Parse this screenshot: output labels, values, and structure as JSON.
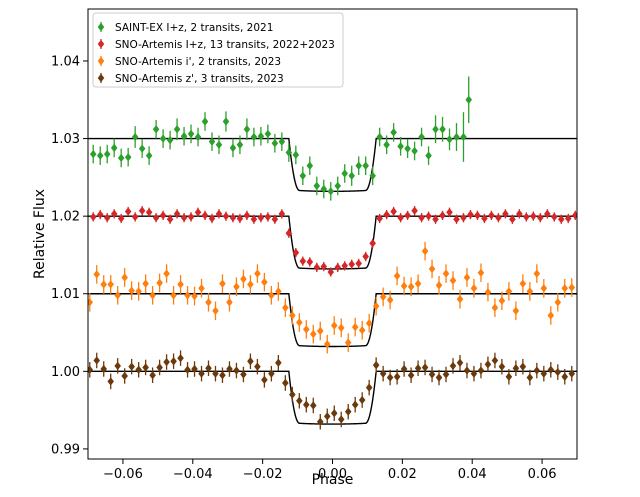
{
  "chart_data": {
    "type": "scatter",
    "title": "",
    "xlabel": "Phase",
    "ylabel": "Relative Flux",
    "xlim": [
      -0.07,
      0.07
    ],
    "ylim": [
      0.9887,
      1.0467
    ],
    "xticks": [
      -0.06,
      -0.04,
      -0.02,
      0.0,
      0.02,
      0.04,
      0.06
    ],
    "xtick_labels": [
      "−0.06",
      "−0.04",
      "−0.02",
      "0.00",
      "0.02",
      "0.04",
      "0.06"
    ],
    "yticks": [
      0.99,
      1.0,
      1.01,
      1.02,
      1.03,
      1.04
    ],
    "ytick_labels": [
      "0.99",
      "1.00",
      "1.01",
      "1.02",
      "1.03",
      "1.04"
    ],
    "legend_position": "top-left",
    "transit_model": {
      "half_width": 0.0125,
      "ingress": 0.003,
      "shape": "limb-darkened box"
    },
    "series": [
      {
        "name": "SAINT-EX I+z, 2 transits, 2021",
        "color": "#2ca02c",
        "baseline": 1.03,
        "depth": 0.0068,
        "x": [
          -0.0685,
          -0.0665,
          -0.0645,
          -0.0625,
          -0.0605,
          -0.0585,
          -0.0565,
          -0.0545,
          -0.0525,
          -0.0505,
          -0.0485,
          -0.0465,
          -0.0445,
          -0.0425,
          -0.0405,
          -0.0385,
          -0.0365,
          -0.0345,
          -0.0325,
          -0.0305,
          -0.0285,
          -0.0265,
          -0.0245,
          -0.0225,
          -0.0205,
          -0.0185,
          -0.0165,
          -0.0145,
          -0.0125,
          -0.0105,
          -0.0085,
          -0.0065,
          -0.0045,
          -0.0025,
          -0.0005,
          0.0015,
          0.0035,
          0.0055,
          0.0075,
          0.0095,
          0.0115,
          0.0135,
          0.0155,
          0.0175,
          0.0195,
          0.0215,
          0.0235,
          0.0255,
          0.0275,
          0.0295,
          0.0315,
          0.0335,
          0.0355,
          0.0375,
          0.039
        ],
        "y": [
          1.028,
          1.0278,
          1.028,
          1.0288,
          1.0275,
          1.0276,
          1.0302,
          1.0287,
          1.0278,
          1.0312,
          1.03,
          1.0298,
          1.0312,
          1.0303,
          1.0306,
          1.0302,
          1.0322,
          1.0296,
          1.0292,
          1.0322,
          1.0288,
          1.0292,
          1.0312,
          1.0302,
          1.0303,
          1.0306,
          1.0294,
          1.0296,
          1.0282,
          1.0279,
          1.0252,
          1.0265,
          1.0239,
          1.0235,
          1.0232,
          1.0239,
          1.0255,
          1.0252,
          1.0265,
          1.0265,
          1.0252,
          1.0302,
          1.0292,
          1.0308,
          1.029,
          1.0287,
          1.0284,
          1.0302,
          1.0278,
          1.0312,
          1.0312,
          1.0299,
          1.0302,
          1.0302,
          1.035
        ],
        "err": [
          0.0012,
          0.0012,
          0.0012,
          0.0012,
          0.0012,
          0.0012,
          0.0014,
          0.0012,
          0.0012,
          0.0012,
          0.0012,
          0.0012,
          0.0014,
          0.0012,
          0.0012,
          0.0012,
          0.0012,
          0.0012,
          0.0012,
          0.0013,
          0.0012,
          0.0012,
          0.0014,
          0.0012,
          0.0012,
          0.0012,
          0.0012,
          0.0012,
          0.0012,
          0.0012,
          0.0012,
          0.0012,
          0.0012,
          0.0012,
          0.0012,
          0.0012,
          0.0012,
          0.0013,
          0.0012,
          0.0012,
          0.0012,
          0.0012,
          0.0012,
          0.0012,
          0.0012,
          0.0012,
          0.0012,
          0.0012,
          0.0012,
          0.0018,
          0.0016,
          0.0014,
          0.0018,
          0.0032,
          0.003
        ]
      },
      {
        "name": "SNO-Artemis I+z, 13 transits, 2022+2023",
        "color": "#d62728",
        "baseline": 1.02,
        "depth": 0.0068,
        "x": [
          -0.0685,
          -0.0665,
          -0.0645,
          -0.0625,
          -0.0605,
          -0.0585,
          -0.0565,
          -0.0545,
          -0.0525,
          -0.0505,
          -0.0485,
          -0.0465,
          -0.0445,
          -0.0425,
          -0.0405,
          -0.0385,
          -0.0365,
          -0.0345,
          -0.0325,
          -0.0305,
          -0.0285,
          -0.0265,
          -0.0245,
          -0.0225,
          -0.0205,
          -0.0185,
          -0.0165,
          -0.0145,
          -0.0125,
          -0.0105,
          -0.0085,
          -0.0065,
          -0.0045,
          -0.0025,
          -0.0005,
          0.0015,
          0.0035,
          0.0055,
          0.0075,
          0.0095,
          0.0115,
          0.0135,
          0.0155,
          0.0175,
          0.0195,
          0.0215,
          0.0235,
          0.0255,
          0.0275,
          0.0295,
          0.0315,
          0.0335,
          0.0355,
          0.0375,
          0.0395,
          0.0415,
          0.0435,
          0.0455,
          0.0475,
          0.0495,
          0.0515,
          0.0535,
          0.0555,
          0.0575,
          0.0595,
          0.0615,
          0.0635,
          0.0655,
          0.0675,
          0.0695
        ],
        "y": [
          1.0199,
          1.0202,
          1.0198,
          1.0203,
          1.0197,
          1.0206,
          1.0199,
          1.0207,
          1.0205,
          1.0198,
          1.0201,
          1.0196,
          1.0203,
          1.0198,
          1.0199,
          1.0205,
          1.0201,
          1.0197,
          1.0203,
          1.02,
          1.0198,
          1.0197,
          1.0201,
          1.0196,
          1.0198,
          1.0199,
          1.0196,
          1.0203,
          1.0178,
          1.0153,
          1.0142,
          1.0141,
          1.0134,
          1.0135,
          1.0128,
          1.0134,
          1.0136,
          1.0138,
          1.0139,
          1.0148,
          1.0165,
          1.0197,
          1.0202,
          1.0206,
          1.0198,
          1.0201,
          1.0207,
          1.0198,
          1.02,
          1.0196,
          1.0201,
          1.0205,
          1.0196,
          1.0198,
          1.0202,
          1.0201,
          1.0197,
          1.0201,
          1.0198,
          1.0203,
          1.0196,
          1.0203,
          1.0199,
          1.02,
          1.0198,
          1.0203,
          1.0199,
          1.0196,
          1.0197,
          1.0201
        ],
        "err": [
          0.0006,
          0.0006,
          0.0006,
          0.0006,
          0.0006,
          0.0006,
          0.0006,
          0.0006,
          0.0006,
          0.0006,
          0.0006,
          0.0006,
          0.0006,
          0.0006,
          0.0006,
          0.0006,
          0.0006,
          0.0006,
          0.0006,
          0.0006,
          0.0006,
          0.0006,
          0.0006,
          0.0006,
          0.0006,
          0.0006,
          0.0006,
          0.0006,
          0.0006,
          0.0006,
          0.0006,
          0.0006,
          0.0006,
          0.0006,
          0.0006,
          0.0006,
          0.0006,
          0.0006,
          0.0006,
          0.0006,
          0.0006,
          0.0006,
          0.0006,
          0.0006,
          0.0006,
          0.0006,
          0.0006,
          0.0006,
          0.0006,
          0.0006,
          0.0006,
          0.0006,
          0.0006,
          0.0006,
          0.0006,
          0.0006,
          0.0006,
          0.0006,
          0.0006,
          0.0006,
          0.0006,
          0.0006,
          0.0006,
          0.0006,
          0.0006,
          0.0006,
          0.0006,
          0.0006,
          0.0006,
          0.0006
        ]
      },
      {
        "name": "SNO-Artemis i', 2 transits, 2023",
        "color": "#ff7f0e",
        "baseline": 1.01,
        "depth": 0.0068,
        "x": [
          -0.0695,
          -0.0675,
          -0.0655,
          -0.0635,
          -0.0615,
          -0.0595,
          -0.0575,
          -0.0555,
          -0.0535,
          -0.0515,
          -0.0495,
          -0.0475,
          -0.0455,
          -0.0435,
          -0.0415,
          -0.0395,
          -0.0375,
          -0.0355,
          -0.0335,
          -0.0315,
          -0.0295,
          -0.0275,
          -0.0255,
          -0.0235,
          -0.0215,
          -0.0195,
          -0.0175,
          -0.0155,
          -0.0135,
          -0.0115,
          -0.0095,
          -0.0075,
          -0.0055,
          -0.0035,
          -0.0015,
          0.0005,
          0.0025,
          0.0045,
          0.0065,
          0.0085,
          0.0105,
          0.0125,
          0.0145,
          0.0165,
          0.0185,
          0.0205,
          0.0225,
          0.0245,
          0.0265,
          0.0285,
          0.0305,
          0.0325,
          0.0345,
          0.0365,
          0.0385,
          0.0405,
          0.0425,
          0.0445,
          0.0465,
          0.0485,
          0.0505,
          0.0525,
          0.0545,
          0.0565,
          0.0585,
          0.0605,
          0.0625,
          0.0645,
          0.0665,
          0.0685
        ],
        "y": [
          1.0089,
          1.0125,
          1.0112,
          1.0112,
          1.0098,
          1.0121,
          1.0104,
          1.0103,
          1.0113,
          1.0098,
          1.0114,
          1.0126,
          1.0098,
          1.0112,
          1.0098,
          1.0097,
          1.0107,
          1.0089,
          1.0078,
          1.0113,
          1.0089,
          1.0109,
          1.0119,
          1.0112,
          1.0126,
          1.0115,
          1.0098,
          1.0103,
          1.0082,
          1.0072,
          1.0063,
          1.0054,
          1.0048,
          1.0052,
          1.0035,
          1.0059,
          1.0056,
          1.0037,
          1.0057,
          1.0053,
          1.0062,
          1.0084,
          1.0096,
          1.0092,
          1.0123,
          1.011,
          1.0109,
          1.0113,
          1.0155,
          1.0132,
          1.0111,
          1.0126,
          1.0117,
          1.0093,
          1.0121,
          1.0107,
          1.0127,
          1.0102,
          1.0082,
          1.0091,
          1.0103,
          1.0078,
          1.0113,
          1.0103,
          1.0126,
          1.0107,
          1.0072,
          1.0089,
          1.0107,
          1.0108
        ],
        "err": [
          0.0012,
          0.0012,
          0.0012,
          0.0012,
          0.0012,
          0.0012,
          0.0012,
          0.0012,
          0.0012,
          0.0012,
          0.0012,
          0.0012,
          0.0012,
          0.0012,
          0.0012,
          0.0012,
          0.0012,
          0.0012,
          0.0012,
          0.0012,
          0.0012,
          0.0012,
          0.0012,
          0.0012,
          0.0012,
          0.0012,
          0.0012,
          0.0012,
          0.0012,
          0.0012,
          0.0012,
          0.0012,
          0.0012,
          0.0012,
          0.0012,
          0.0012,
          0.0012,
          0.0012,
          0.0012,
          0.0012,
          0.0012,
          0.0012,
          0.0012,
          0.0012,
          0.0012,
          0.0012,
          0.0012,
          0.0012,
          0.0012,
          0.0012,
          0.0012,
          0.0012,
          0.0012,
          0.0012,
          0.0012,
          0.0012,
          0.0012,
          0.0012,
          0.0012,
          0.0012,
          0.0012,
          0.0012,
          0.0012,
          0.0012,
          0.0012,
          0.0012,
          0.0012,
          0.0012,
          0.0012,
          0.0012
        ]
      },
      {
        "name": "SNO-Artemis z', 3 transits, 2023",
        "color": "#6b3a0c",
        "baseline": 1.0,
        "depth": 0.0068,
        "x": [
          -0.0695,
          -0.0675,
          -0.0655,
          -0.0635,
          -0.0615,
          -0.0595,
          -0.0575,
          -0.0555,
          -0.0535,
          -0.0515,
          -0.0495,
          -0.0475,
          -0.0455,
          -0.0435,
          -0.0415,
          -0.0395,
          -0.0375,
          -0.0355,
          -0.0335,
          -0.0315,
          -0.0295,
          -0.0275,
          -0.0255,
          -0.0235,
          -0.0215,
          -0.0195,
          -0.0175,
          -0.0155,
          -0.0135,
          -0.0115,
          -0.0095,
          -0.0075,
          -0.0055,
          -0.0035,
          -0.0015,
          0.0005,
          0.0025,
          0.0045,
          0.0065,
          0.0085,
          0.0105,
          0.0125,
          0.0145,
          0.0165,
          0.0185,
          0.0205,
          0.0225,
          0.0245,
          0.0265,
          0.0285,
          0.0305,
          0.0325,
          0.0345,
          0.0365,
          0.0385,
          0.0405,
          0.0425,
          0.0445,
          0.0465,
          0.0485,
          0.0505,
          0.0525,
          0.0545,
          0.0565,
          0.0585,
          0.0605,
          0.0625,
          0.0645,
          0.0665,
          0.0685
        ],
        "y": [
          1.0002,
          1.0014,
          1.0003,
          0.9987,
          1.0007,
          0.9994,
          1.0006,
          1.0002,
          1.0005,
          0.9995,
          1.0005,
          1.0012,
          1.0013,
          1.0017,
          1.0002,
          1.0003,
          0.9997,
          1.0004,
          0.9997,
          0.9995,
          1.0003,
          1.0001,
          0.9996,
          1.0013,
          1.0006,
          0.9989,
          0.9997,
          1.0011,
          0.9985,
          0.997,
          0.9962,
          0.9957,
          0.9956,
          0.9935,
          0.9942,
          0.9946,
          0.9938,
          0.9948,
          0.9957,
          0.9963,
          0.9979,
          1.0008,
          0.9997,
          0.9992,
          0.9993,
          1.0003,
          0.9995,
          1.0004,
          1.0005,
          0.9996,
          0.9992,
          0.9996,
          1.0007,
          1.0011,
          1.0001,
          0.9997,
          1.0001,
          1.0009,
          1.0014,
          1.0006,
          0.9993,
          1.0004,
          1.0006,
          0.9992,
          1.0001,
          0.9997,
          1.0002,
          0.9999,
          0.9993,
          0.9997
        ],
        "err": [
          0.001,
          0.001,
          0.001,
          0.001,
          0.001,
          0.001,
          0.001,
          0.001,
          0.001,
          0.001,
          0.001,
          0.001,
          0.001,
          0.001,
          0.001,
          0.001,
          0.001,
          0.001,
          0.001,
          0.001,
          0.001,
          0.001,
          0.001,
          0.001,
          0.001,
          0.001,
          0.001,
          0.001,
          0.001,
          0.001,
          0.001,
          0.001,
          0.001,
          0.001,
          0.001,
          0.001,
          0.001,
          0.001,
          0.001,
          0.001,
          0.001,
          0.001,
          0.001,
          0.001,
          0.001,
          0.001,
          0.001,
          0.001,
          0.001,
          0.001,
          0.001,
          0.001,
          0.001,
          0.001,
          0.001,
          0.001,
          0.001,
          0.001,
          0.001,
          0.001,
          0.001,
          0.001,
          0.001,
          0.001,
          0.001,
          0.001,
          0.001,
          0.001,
          0.001,
          0.001
        ]
      }
    ]
  }
}
